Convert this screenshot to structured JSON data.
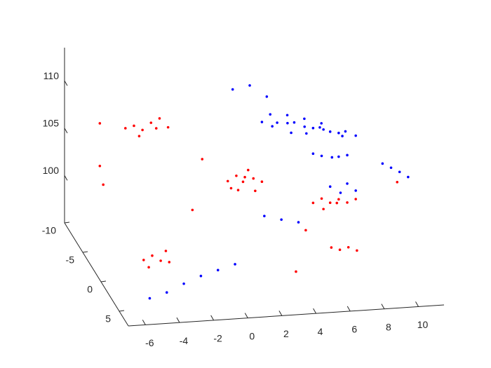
{
  "chart_data": {
    "type": "scatter3d",
    "xlim": [
      -7,
      11.5
    ],
    "ylim": [
      -10,
      7.5
    ],
    "zlim": [
      95,
      113.5
    ],
    "xticks": [
      -6,
      -4,
      -2,
      0,
      2,
      4,
      6,
      8,
      10
    ],
    "yticks": [
      -10,
      -5,
      0,
      5
    ],
    "zticks": [
      100,
      105,
      110
    ],
    "series": [
      {
        "color": "#0000ff",
        "x": [
          3.5,
          4,
          4.5,
          5,
          5,
          5.5,
          6,
          6,
          6.5,
          7,
          7,
          7.5,
          8,
          8,
          8.5,
          9,
          4.2,
          5.2,
          6.2,
          7.2,
          6.5,
          7,
          7.5,
          8,
          8.5,
          7.5,
          8,
          8.5,
          9,
          9.5,
          10,
          10.5,
          11,
          2,
          3,
          4,
          -5,
          -4,
          -3,
          -2,
          -1,
          0,
          3,
          4,
          5
        ],
        "y": [
          -5,
          -4.5,
          -5.5,
          -5,
          -4,
          -5.5,
          -5,
          -4.5,
          -5,
          -5.5,
          -4.5,
          -5,
          -5,
          -4,
          -5.5,
          -5,
          -6,
          -6,
          -6,
          -6,
          -5,
          -5,
          -4.5,
          -5,
          -5,
          -5,
          -4.5,
          -5,
          -5,
          0,
          0,
          0,
          0,
          -6,
          -6,
          -6,
          4,
          4,
          4,
          4,
          4,
          4,
          -2,
          -2,
          -2
        ],
        "z": [
          107.5,
          107.3,
          107,
          107.2,
          106.8,
          106.9,
          106.7,
          106.3,
          106.5,
          106.2,
          106.6,
          106,
          105.8,
          106.1,
          105.6,
          105.4,
          107.6,
          107.4,
          106.9,
          106.3,
          103.8,
          103.5,
          103.6,
          103.3,
          103.4,
          100.2,
          99.8,
          100.4,
          99.6,
          105.5,
          105,
          104.5,
          103.9,
          110.5,
          110.8,
          109.5,
          95.5,
          96,
          96.8,
          97.5,
          98,
          98.5,
          99.5,
          99,
          98.6
        ]
      },
      {
        "color": "#ff0000",
        "x": [
          1.5,
          2,
          2,
          2.5,
          2.5,
          3,
          3,
          3.5,
          1.8,
          2.8,
          6.5,
          7,
          7,
          7.5,
          8,
          8,
          8.5,
          9,
          -4.5,
          -4,
          -3.5,
          -3,
          -2.5,
          -2,
          -3.8,
          -2.8,
          -6,
          -6,
          -5.8,
          -4.5,
          -4,
          -3.5,
          -3,
          -4.2,
          -3.2,
          6.5,
          7,
          7.5,
          8,
          11,
          0,
          5,
          4,
          -1
        ],
        "y": [
          -5,
          -5,
          -4.5,
          -5,
          -5.5,
          -5,
          -4.5,
          -5,
          -5.5,
          -5.5,
          -5,
          -5,
          -4.5,
          -5,
          -5,
          -5.5,
          -5,
          -5,
          -5,
          -5,
          -5,
          -5,
          -5,
          -5,
          -4.5,
          -4.5,
          -5,
          -5,
          -5,
          0,
          0,
          0,
          0,
          0,
          0,
          0,
          0,
          0,
          0,
          -3,
          -5,
          0,
          2,
          -3
        ],
        "z": [
          101.5,
          102,
          100.8,
          101.8,
          101,
          101.6,
          100.6,
          101.2,
          100.4,
          102.2,
          98.6,
          99,
          98.2,
          98.5,
          98.8,
          98.1,
          98.4,
          98.7,
          107.8,
          108,
          107.5,
          108.2,
          108.6,
          107.6,
          107.2,
          107.9,
          108.5,
          104,
          102,
          97,
          97.4,
          96.8,
          96.6,
          96.2,
          97.8,
          97,
          96.7,
          96.9,
          96.5,
          101.5,
          104,
          99,
          96,
          100
        ]
      }
    ]
  }
}
